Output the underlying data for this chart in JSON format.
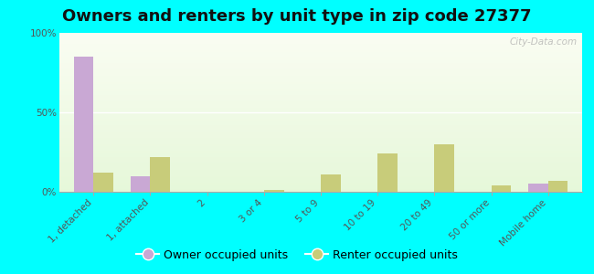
{
  "title": "Owners and renters by unit type in zip code 27377",
  "categories": [
    "1, detached",
    "1, attached",
    "2",
    "3 or 4",
    "5 to 9",
    "10 to 19",
    "20 to 49",
    "50 or more",
    "Mobile home"
  ],
  "owner_values": [
    85,
    10,
    0,
    0,
    0,
    0,
    0,
    0,
    5
  ],
  "renter_values": [
    12,
    22,
    0,
    1,
    11,
    24,
    30,
    4,
    7
  ],
  "owner_color": "#c9a8d4",
  "renter_color": "#c8cc7a",
  "outer_bg": "#00ffff",
  "ylim": [
    0,
    100
  ],
  "yticks": [
    0,
    50,
    100
  ],
  "ytick_labels": [
    "0%",
    "50%",
    "100%"
  ],
  "bar_width": 0.35,
  "legend_owner": "Owner occupied units",
  "legend_renter": "Renter occupied units",
  "watermark": "City-Data.com",
  "title_fontsize": 13,
  "tick_fontsize": 7.5,
  "legend_fontsize": 9
}
